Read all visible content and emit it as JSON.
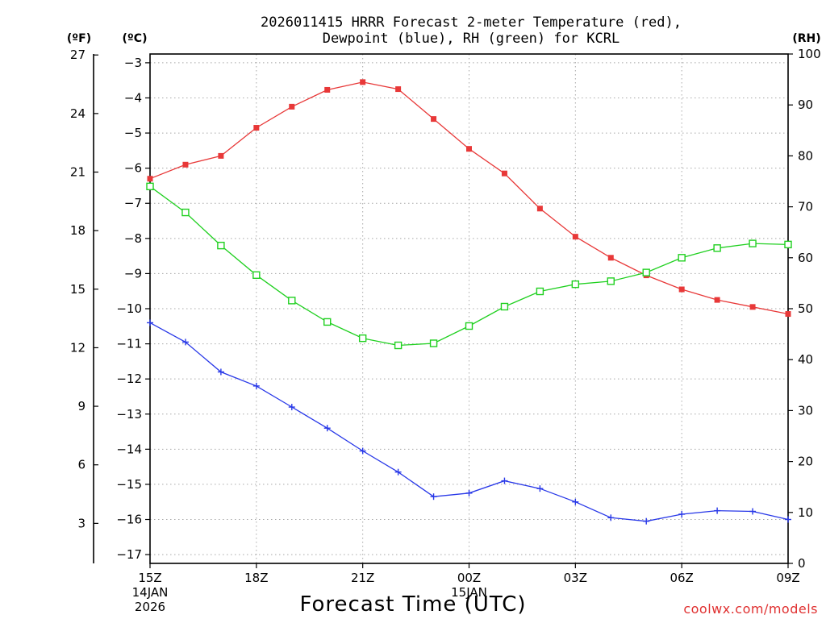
{
  "chart_data": {
    "type": "line",
    "title_line1": "2026011415 HRRR Forecast 2-meter Temperature (red),",
    "title_line2": "Dewpoint (blue), RH (green) for KCRL",
    "xlabel": "Forecast Time (UTC)",
    "left_unit_f": "(ºF)",
    "left_unit_c": "(ºC)",
    "right_unit": "(RH)",
    "watermark": "coolwx.com/models",
    "x_tick_labels": [
      "15Z",
      "18Z",
      "21Z",
      "00Z",
      "03Z",
      "06Z",
      "09Z"
    ],
    "x_tick_sublabels": [
      [
        "14JAN",
        "2026"
      ],
      [],
      [],
      [
        "15JAN"
      ],
      [],
      [],
      []
    ],
    "x_hours": [
      0,
      1,
      2,
      3,
      4,
      5,
      6,
      7,
      8,
      9,
      10,
      11,
      12,
      13,
      14,
      15,
      16,
      17,
      18
    ],
    "x_range": [
      0,
      18
    ],
    "celsius_ticks": [
      -3,
      -4,
      -5,
      -6,
      -7,
      -8,
      -9,
      -10,
      -11,
      -12,
      -13,
      -14,
      -15,
      -16,
      -17
    ],
    "celsius_range": [
      -17.25,
      -2.75
    ],
    "fahrenheit_ticks": [
      27,
      24,
      21,
      18,
      15,
      12,
      9,
      6,
      3
    ],
    "rh_ticks": [
      100,
      90,
      80,
      70,
      60,
      50,
      40,
      30,
      20,
      10,
      0
    ],
    "rh_range": [
      0,
      100
    ],
    "grid": true,
    "series": [
      {
        "name": "Temperature",
        "axis": "celsius",
        "color": "#e83838",
        "marker": "filled-square",
        "values": [
          -6.3,
          -5.9,
          -5.65,
          -4.85,
          -4.25,
          -3.77,
          -3.55,
          -3.75,
          -4.6,
          -5.45,
          -6.15,
          -7.15,
          -7.95,
          -8.55,
          -9.05,
          -9.45,
          -9.75,
          -9.95,
          -10.15
        ]
      },
      {
        "name": "Dewpoint",
        "axis": "celsius",
        "color": "#2838e8",
        "marker": "plus",
        "values": [
          -10.4,
          -10.95,
          -11.8,
          -12.2,
          -12.8,
          -13.4,
          -14.05,
          -14.65,
          -15.35,
          -15.25,
          -14.9,
          -15.12,
          -15.5,
          -15.95,
          -16.05,
          -15.85,
          -15.75,
          -15.77,
          -16.0
        ]
      },
      {
        "name": "RH",
        "axis": "rh",
        "color": "#20d020",
        "marker": "open-square",
        "values": [
          74.0,
          68.9,
          62.4,
          56.6,
          51.6,
          47.4,
          44.2,
          42.8,
          43.2,
          46.6,
          50.4,
          53.4,
          54.8,
          55.4,
          57.1,
          60.0,
          61.9,
          62.8,
          62.6
        ]
      }
    ]
  }
}
